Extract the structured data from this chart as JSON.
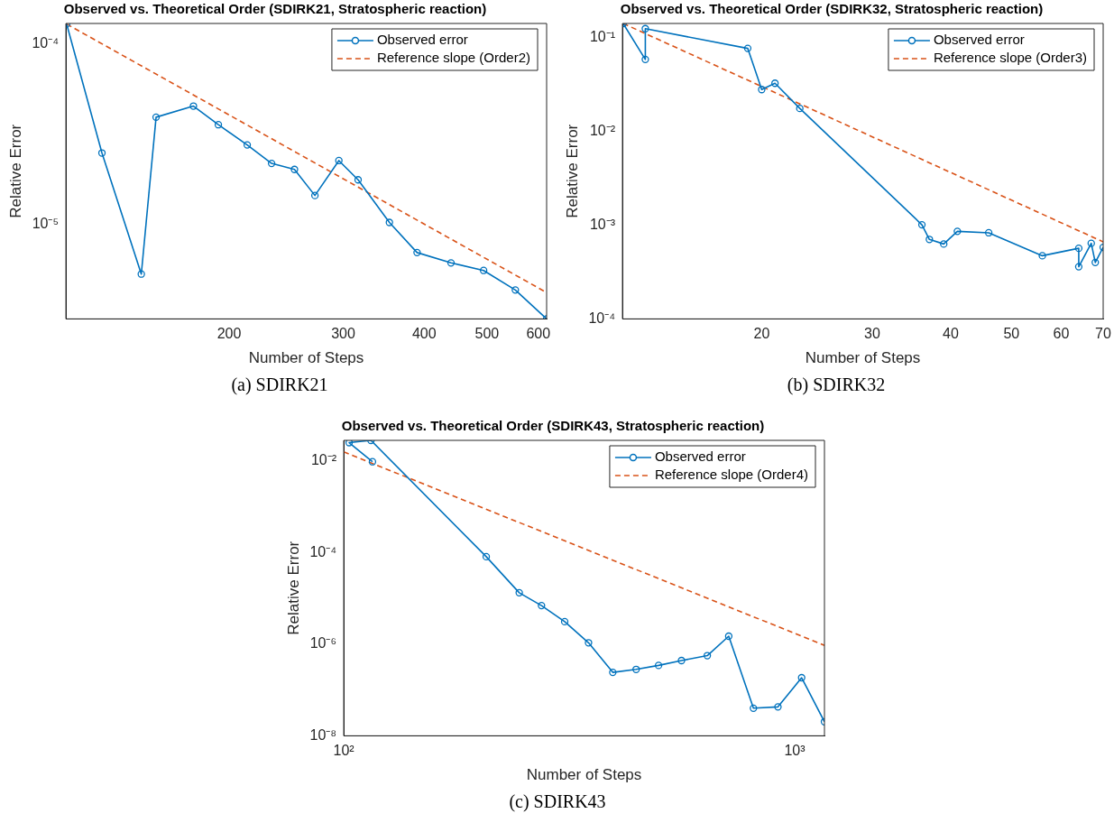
{
  "chart_data": [
    {
      "type": "line",
      "title": "Observed vs. Theoretical Order (SDIRK21, Stratospheric reaction)",
      "xlabel": "Number of Steps",
      "ylabel": "Relative Error",
      "log": "xy",
      "legend": "top right",
      "xlim": [
        112,
        618
      ],
      "ylim": [
        2.97e-06,
        0.00013
      ],
      "xticks": [
        200,
        300,
        400,
        500,
        600
      ],
      "yticks": [
        {
          "value": 1e-05,
          "label": "10⁻⁵"
        },
        {
          "value": 0.0001,
          "label": "10⁻⁴"
        }
      ],
      "annotations": [
        "(a) SDIRK21"
      ],
      "series": [
        {
          "name": "Observed error",
          "color": "#0072bd",
          "marker": "circle",
          "x": [
            112.3,
            127.3,
            146.4,
            154.3,
            176.2,
            192.5,
            213.3,
            232.6,
            252.3,
            271.3,
            295.4,
            316.3,
            353.5,
            390,
            440,
            494,
            553,
            618
          ],
          "values": [
            0.000129,
            2.48e-05,
            5.27e-06,
            3.92e-05,
            4.52e-05,
            3.56e-05,
            2.75e-05,
            2.17e-05,
            2.01e-05,
            1.44e-05,
            2.25e-05,
            1.76e-05,
            1.02e-05,
            6.94e-06,
            6.08e-06,
            5.52e-06,
            4.3e-06,
            2.97e-06
          ]
        },
        {
          "name": "Reference slope (Order2)",
          "color": "#d95319",
          "marker": "none",
          "line_style": "dashed",
          "x": [
            112.3,
            618
          ],
          "values": [
            0.000129,
            4.16e-06
          ]
        }
      ]
    },
    {
      "type": "line",
      "title": "Observed vs. Theoretical Order (SDIRK32, Stratospheric reaction)",
      "xlabel": "Number of Steps",
      "ylabel": "Relative Error",
      "log": "xy",
      "legend": "top right",
      "xlim": [
        12,
        70
      ],
      "ylim": [
        0.0001,
        0.142
      ],
      "xticks": [
        20,
        30,
        40,
        50,
        60,
        70
      ],
      "yticks": [
        {
          "value": 0.0001,
          "label": "10⁻⁴"
        },
        {
          "value": 0.001,
          "label": "10⁻³"
        },
        {
          "value": 0.01,
          "label": "10⁻²"
        },
        {
          "value": 0.1,
          "label": "10⁻¹"
        }
      ],
      "annotations": [
        "(b) SDIRK32"
      ],
      "series": [
        {
          "name": "Observed error",
          "color": "#0072bd",
          "marker": "circle",
          "x": [
            12.03,
            13.05,
            13.05,
            19,
            20,
            21,
            23,
            36,
            37,
            39,
            41,
            46,
            56,
            64,
            64,
            67,
            68,
            70
          ],
          "values": [
            0.142,
            0.0587,
            0.125,
            0.077,
            0.028,
            0.0327,
            0.0176,
            0.00101,
            0.000705,
            0.00063,
            0.00086,
            0.00083,
            0.000472,
            0.000567,
            0.00036,
            0.00064,
            0.0004,
            0.00058
          ]
        },
        {
          "name": "Reference slope (Order3)",
          "color": "#d95319",
          "marker": "none",
          "line_style": "dashed",
          "x": [
            12.03,
            70
          ],
          "values": [
            0.142,
            0.000664
          ]
        }
      ]
    },
    {
      "type": "line",
      "title": "Observed vs. Theoretical Order (SDIRK43, Stratospheric reaction)",
      "xlabel": "Number of Steps",
      "ylabel": "Relative Error",
      "log": "xy",
      "legend": "top right",
      "xlim": [
        100,
        1164
      ],
      "ylim": [
        1e-08,
        0.0278
      ],
      "xticks": [
        {
          "value": 100,
          "label": "10²"
        },
        {
          "value": 1000,
          "label": "10³"
        }
      ],
      "yticks": [
        {
          "value": 1e-08,
          "label": "10⁻⁸"
        },
        {
          "value": 1e-06,
          "label": "10⁻⁶"
        },
        {
          "value": 0.0001,
          "label": "10⁻⁴"
        },
        {
          "value": 0.01,
          "label": "10⁻²"
        }
      ],
      "annotations": [
        "(c) SDIRK43"
      ],
      "series": [
        {
          "name": "Observed error",
          "color": "#0072bd",
          "marker": "circle",
          "x": [
            115.8,
            102.8,
            114.9,
            207,
            245,
            274.5,
            309,
            349,
            395,
            445,
            499,
            561,
            640,
            714,
            810,
            918,
            1036,
            1164
          ],
          "values": [
            0.0095,
            0.0248,
            0.0278,
            8.07e-05,
            1.32e-05,
            6.92e-06,
            3.09e-06,
            1.07e-06,
            2.42e-07,
            2.81e-07,
            3.43e-07,
            4.38e-07,
            5.61e-07,
            1.49e-06,
            4e-08,
            4.27e-08,
            1.85e-07,
            2.03e-08
          ]
        },
        {
          "name": "Reference slope (Order4)",
          "color": "#d95319",
          "marker": "none",
          "line_style": "dashed",
          "x": [
            100,
            1164
          ],
          "values": [
            0.0156,
            9.4e-07
          ]
        }
      ]
    }
  ]
}
